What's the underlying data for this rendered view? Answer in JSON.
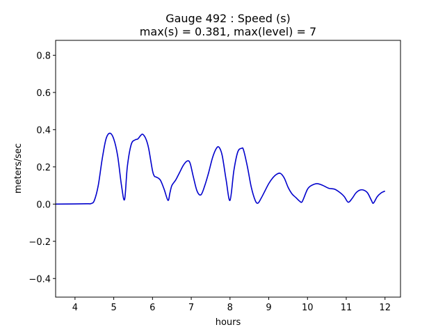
{
  "chart_data": {
    "type": "line",
    "title_lines": [
      "Gauge 492 : Speed (s)",
      "max(s) =   0.381,    max(level) = 7"
    ],
    "xlabel": "hours",
    "ylabel": "meters/sec",
    "xlim": [
      3.5,
      12.4
    ],
    "ylim": [
      -0.5,
      0.88
    ],
    "xticks": [
      4,
      5,
      6,
      7,
      8,
      9,
      10,
      11,
      12
    ],
    "xtick_labels": [
      "4",
      "5",
      "6",
      "7",
      "8",
      "9",
      "10",
      "11",
      "12"
    ],
    "yticks": [
      -0.4,
      -0.2,
      0.0,
      0.2,
      0.4,
      0.6,
      0.8
    ],
    "ytick_labels": [
      "−0.4",
      "−0.2",
      "0.0",
      "0.2",
      "0.4",
      "0.6",
      "0.8"
    ],
    "grid": false,
    "series": [
      {
        "color": "#0000cc",
        "x": [
          3.5,
          4.0,
          4.3,
          4.42,
          4.5,
          4.6,
          4.7,
          4.8,
          4.9,
          5.0,
          5.1,
          5.2,
          5.28,
          5.35,
          5.45,
          5.55,
          5.62,
          5.7,
          5.75,
          5.83,
          5.9,
          6.0,
          6.05,
          6.1,
          6.2,
          6.3,
          6.4,
          6.45,
          6.5,
          6.6,
          6.7,
          6.8,
          6.9,
          6.97,
          7.05,
          7.15,
          7.25,
          7.35,
          7.45,
          7.55,
          7.65,
          7.72,
          7.8,
          7.9,
          8.0,
          8.1,
          8.2,
          8.3,
          8.35,
          8.45,
          8.55,
          8.65,
          8.72,
          8.8,
          8.9,
          9.0,
          9.1,
          9.2,
          9.3,
          9.4,
          9.5,
          9.6,
          9.7,
          9.8,
          9.85,
          9.9,
          10.0,
          10.1,
          10.25,
          10.4,
          10.55,
          10.7,
          10.85,
          10.95,
          11.05,
          11.15,
          11.25,
          11.35,
          11.45,
          11.55,
          11.65,
          11.7,
          11.8,
          11.9,
          12.0
        ],
        "y": [
          0.0,
          0.001,
          0.002,
          0.003,
          0.02,
          0.1,
          0.24,
          0.35,
          0.381,
          0.35,
          0.26,
          0.1,
          0.025,
          0.2,
          0.32,
          0.345,
          0.35,
          0.37,
          0.375,
          0.35,
          0.3,
          0.18,
          0.15,
          0.145,
          0.13,
          0.08,
          0.02,
          0.06,
          0.1,
          0.13,
          0.17,
          0.21,
          0.232,
          0.22,
          0.15,
          0.07,
          0.05,
          0.1,
          0.17,
          0.25,
          0.3,
          0.305,
          0.26,
          0.13,
          0.02,
          0.18,
          0.28,
          0.3,
          0.29,
          0.2,
          0.09,
          0.02,
          0.005,
          0.03,
          0.07,
          0.11,
          0.14,
          0.16,
          0.165,
          0.14,
          0.09,
          0.055,
          0.035,
          0.015,
          0.01,
          0.03,
          0.08,
          0.1,
          0.11,
          0.1,
          0.085,
          0.08,
          0.06,
          0.04,
          0.01,
          0.03,
          0.06,
          0.075,
          0.075,
          0.06,
          0.02,
          0.005,
          0.04,
          0.06,
          0.07
        ]
      }
    ]
  }
}
